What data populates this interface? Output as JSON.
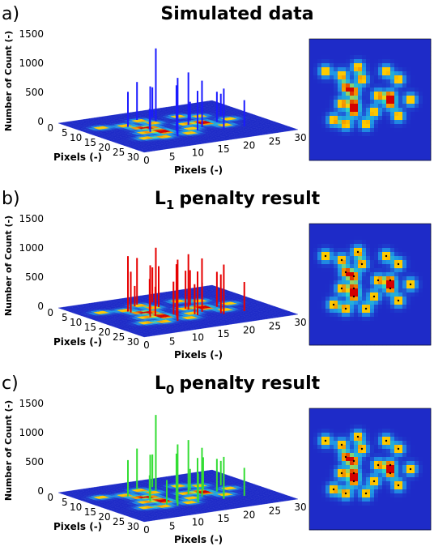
{
  "panels": [
    {
      "letter": "a)",
      "title": "Simulated data",
      "title_sub": "",
      "title_rest": "",
      "stem_color": "#1a1aff",
      "peaks": [
        [
          8,
          10,
          600
        ],
        [
          9,
          16,
          780
        ],
        [
          11,
          22,
          1000
        ],
        [
          10,
          14,
          350
        ],
        [
          12,
          20,
          300
        ],
        [
          13,
          18,
          780
        ],
        [
          14,
          9,
          1250
        ],
        [
          15,
          6,
          520
        ],
        [
          16,
          20,
          680
        ],
        [
          17,
          15,
          900
        ],
        [
          18,
          18,
          450
        ],
        [
          19,
          12,
          320
        ],
        [
          20,
          22,
          700
        ],
        [
          22,
          16,
          520
        ],
        [
          23,
          9,
          580
        ],
        [
          24,
          22,
          450
        ],
        [
          25,
          12,
          380
        ],
        [
          12,
          6,
          650
        ]
      ]
    },
    {
      "letter": "b)",
      "title": "L",
      "title_sub": "1",
      "title_rest": "penalty result",
      "stem_color": "#e60000",
      "peaks": [
        [
          8,
          10,
          950
        ],
        [
          8,
          11,
          700
        ],
        [
          9,
          16,
          880
        ],
        [
          10,
          16,
          500
        ],
        [
          11,
          22,
          1050
        ],
        [
          10,
          14,
          600
        ],
        [
          12,
          20,
          550
        ],
        [
          13,
          18,
          880
        ],
        [
          13,
          17,
          400
        ],
        [
          14,
          9,
          1000
        ],
        [
          14,
          10,
          700
        ],
        [
          15,
          6,
          600
        ],
        [
          16,
          20,
          750
        ],
        [
          16,
          19,
          450
        ],
        [
          17,
          15,
          950
        ],
        [
          17,
          14,
          650
        ],
        [
          18,
          18,
          500
        ],
        [
          19,
          12,
          600
        ],
        [
          20,
          22,
          850
        ],
        [
          20,
          21,
          400
        ],
        [
          22,
          16,
          600
        ],
        [
          23,
          9,
          700
        ],
        [
          24,
          22,
          500
        ],
        [
          25,
          12,
          450
        ],
        [
          12,
          6,
          800
        ],
        [
          11,
          7,
          350
        ],
        [
          21,
          10,
          300
        ],
        [
          18,
          8,
          350
        ]
      ]
    },
    {
      "letter": "c)",
      "title": "L",
      "title_sub": "0",
      "title_rest": "penalty result",
      "stem_color": "#33dd33",
      "peaks": [
        [
          8,
          10,
          620
        ],
        [
          9,
          16,
          800
        ],
        [
          11,
          22,
          1050
        ],
        [
          10,
          14,
          400
        ],
        [
          12,
          20,
          380
        ],
        [
          13,
          18,
          800
        ],
        [
          14,
          9,
          1300
        ],
        [
          15,
          6,
          560
        ],
        [
          16,
          20,
          720
        ],
        [
          17,
          15,
          930
        ],
        [
          18,
          18,
          480
        ],
        [
          19,
          12,
          360
        ],
        [
          20,
          22,
          720
        ],
        [
          22,
          16,
          560
        ],
        [
          23,
          9,
          620
        ],
        [
          24,
          22,
          480
        ],
        [
          25,
          12,
          420
        ],
        [
          12,
          6,
          700
        ],
        [
          21,
          13,
          550
        ],
        [
          15,
          22,
          500
        ],
        [
          10,
          20,
          420
        ]
      ]
    }
  ],
  "axes": {
    "zlabel": "Number of Count (-)",
    "z_ticks": [
      "0",
      "500",
      "1000",
      "1500"
    ],
    "xlabel": "Pixels (-)",
    "ylabel": "Pixels (-)",
    "x_ticks": [
      "0",
      "5",
      "10",
      "15",
      "20",
      "25",
      "30"
    ],
    "y_ticks": [
      "0",
      "5",
      "10",
      "15",
      "20",
      "25",
      "30"
    ]
  },
  "chart_data": [
    {
      "type": "scatter",
      "title": "Simulated data",
      "description_axes": "3D stem plot over 30x30 pixel image with 2D heatmap",
      "xlabel": "Pixels (-)",
      "ylabel": "Pixels (-)",
      "zlabel": "Number of Count (-)",
      "xlim": [
        0,
        30
      ],
      "ylim": [
        0,
        30
      ],
      "zlim": [
        0,
        1500
      ]
    },
    {
      "type": "scatter",
      "title": "L1 penalty result",
      "xlabel": "Pixels (-)",
      "ylabel": "Pixels (-)",
      "zlabel": "Number of Count (-)",
      "xlim": [
        0,
        30
      ],
      "ylim": [
        0,
        30
      ],
      "zlim": [
        0,
        1500
      ]
    },
    {
      "type": "scatter",
      "title": "L0 penalty result",
      "xlabel": "Pixels (-)",
      "ylabel": "Pixels (-)",
      "zlabel": "Number of Count (-)",
      "xlim": [
        0,
        30
      ],
      "ylim": [
        0,
        30
      ],
      "zlim": [
        0,
        1500
      ]
    }
  ],
  "heatmap_spots": [
    [
      4,
      8
    ],
    [
      8,
      9
    ],
    [
      9,
      12
    ],
    [
      12,
      7
    ],
    [
      13,
      10
    ],
    [
      11,
      13
    ],
    [
      8,
      16
    ],
    [
      11,
      16
    ],
    [
      11,
      18
    ],
    [
      6,
      20
    ],
    [
      9,
      21
    ],
    [
      14,
      21
    ],
    [
      16,
      18
    ],
    [
      17,
      14
    ],
    [
      19,
      8
    ],
    [
      20,
      14
    ],
    [
      20,
      16
    ],
    [
      22,
      10
    ],
    [
      22,
      19
    ],
    [
      25,
      15
    ]
  ],
  "colors": {
    "heat_low": "#1e2bc8",
    "heat_mid": "#20c0e0",
    "heat_high": "#ffd000",
    "heat_peak": "#d40000",
    "plane": "#1432c8"
  }
}
